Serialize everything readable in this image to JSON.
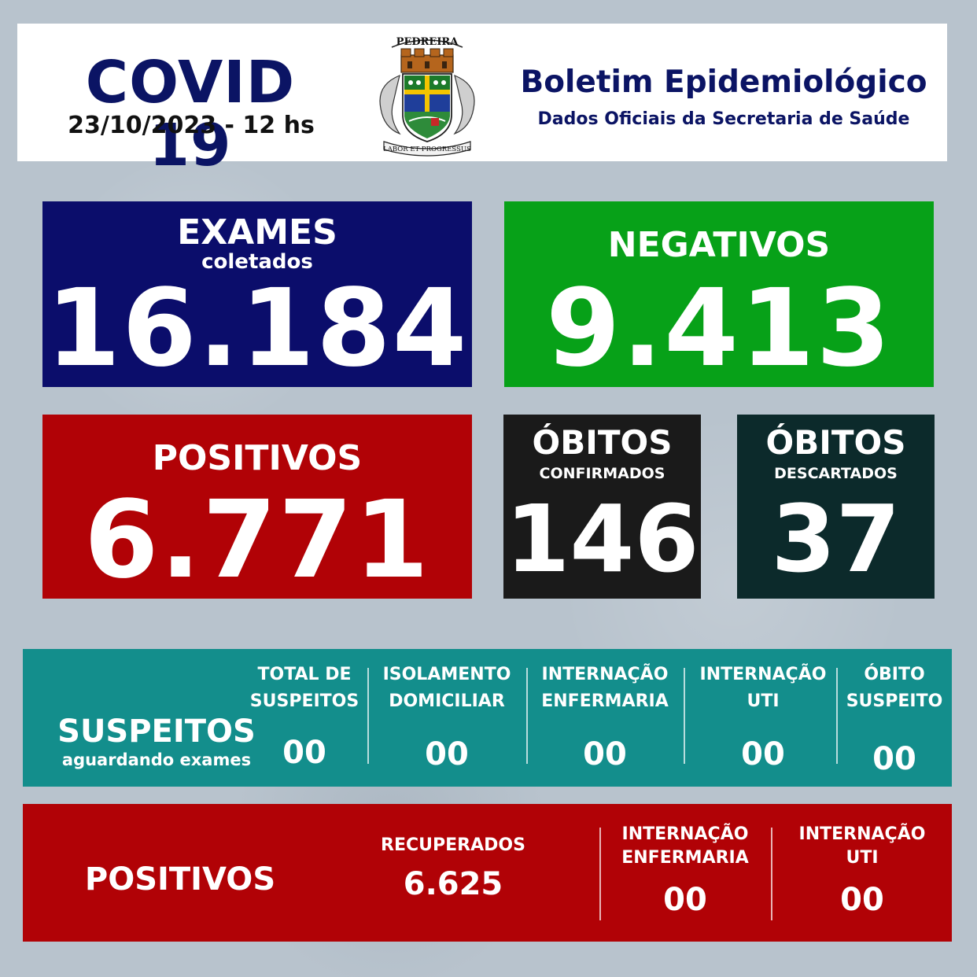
{
  "header": {
    "title": "COVID 19",
    "date": "23/10/2023 - 12 hs",
    "crest_name": "PEDREIRA",
    "crest_motto": "LABOR ET PROGRESSUS",
    "bulletin_title": "Boletim Epidemiológico",
    "bulletin_subtitle": "Dados Oficiais da Secretaria de Saúde"
  },
  "exames": {
    "label": "EXAMES",
    "sublabel": "coletados",
    "value": "16.184"
  },
  "negativos": {
    "label": "NEGATIVOS",
    "value": "9.413"
  },
  "positivos": {
    "label": "POSITIVOS",
    "value": "6.771"
  },
  "obitos_confirmados": {
    "label": "ÓBITOS",
    "sublabel": "CONFIRMADOS",
    "value": "146"
  },
  "obitos_descartados": {
    "label": "ÓBITOS",
    "sublabel": "DESCARTADOS",
    "value": "37"
  },
  "suspeitos": {
    "title": "SUSPEITOS",
    "subtitle": "aguardando exames",
    "columns": [
      {
        "line1": "TOTAL DE",
        "line2": "SUSPEITOS",
        "value": "00"
      },
      {
        "line1": "ISOLAMENTO",
        "line2": "DOMICILIAR",
        "value": "00"
      },
      {
        "line1": "INTERNAÇÃO",
        "line2": "ENFERMARIA",
        "value": "00"
      },
      {
        "line1": "INTERNAÇÃO",
        "line2": "UTI",
        "value": "00"
      },
      {
        "line1": "ÓBITO",
        "line2": "SUSPEITO",
        "value": "00"
      }
    ]
  },
  "positivos_detail": {
    "title": "POSITIVOS",
    "recuperados": {
      "label": "RECUPERADOS",
      "value": "6.625"
    },
    "enfermaria": {
      "line1": "INTERNAÇÃO",
      "line2": "ENFERMARIA",
      "value": "00"
    },
    "uti": {
      "line1": "INTERNAÇÃO",
      "line2": "UTI",
      "value": "00"
    }
  },
  "colors": {
    "navy": "#0b0d6b",
    "green": "#07a118",
    "red": "#b10206",
    "black": "#1a1a1a",
    "dark_teal": "#0c2a2b",
    "teal": "#138e8c",
    "background": "#b8c3cd"
  }
}
